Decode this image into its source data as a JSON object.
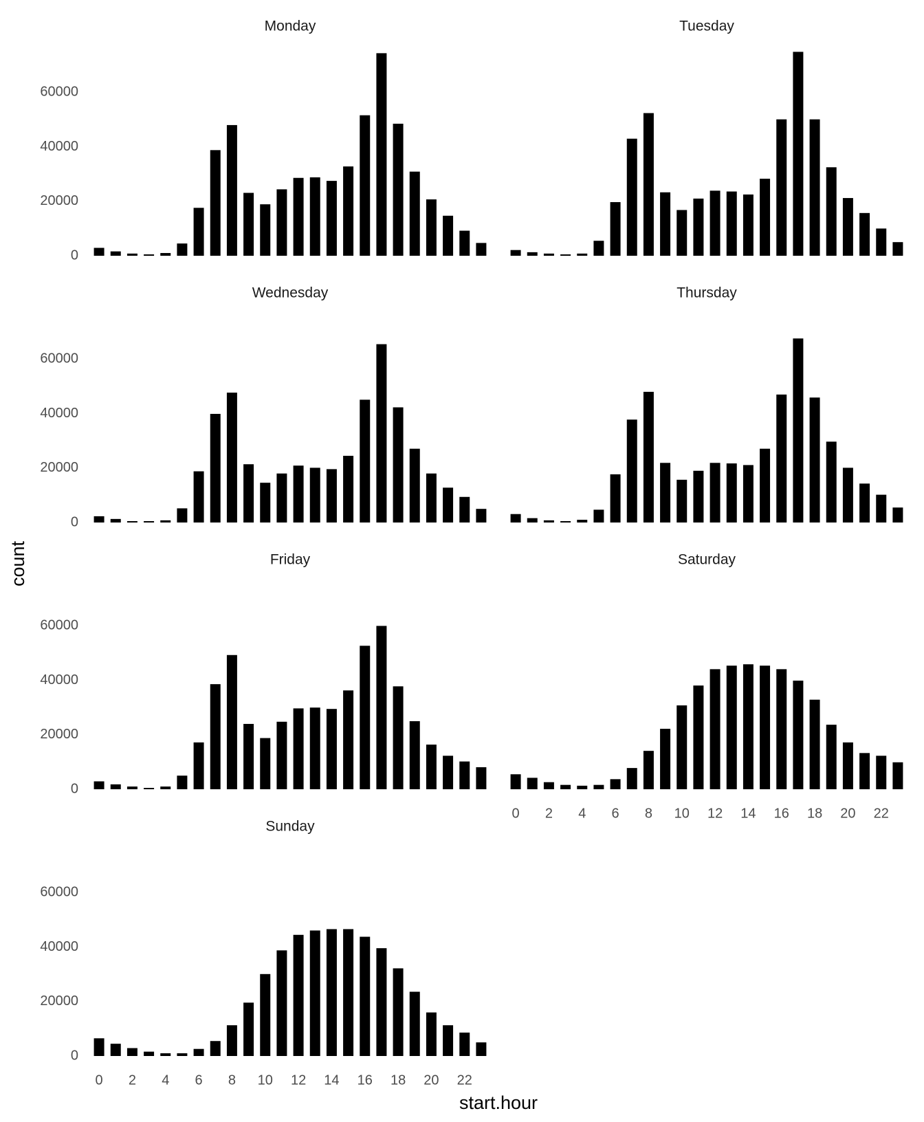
{
  "xlabel": "start.hour",
  "ylabel": "count",
  "chart_data": [
    {
      "type": "bar",
      "title": "Monday",
      "x": [
        0,
        1,
        2,
        3,
        4,
        5,
        6,
        7,
        8,
        9,
        10,
        11,
        12,
        13,
        14,
        15,
        16,
        17,
        18,
        19,
        20,
        21,
        22,
        23
      ],
      "values": [
        2900,
        1600,
        800,
        500,
        1000,
        4500,
        17600,
        38800,
        48000,
        23100,
        18900,
        24400,
        28600,
        28800,
        27500,
        32800,
        51600,
        74400,
        48500,
        30900,
        20700,
        14700,
        9200,
        4700
      ],
      "color": "#000000",
      "xlim": [
        -0.5,
        23.5
      ],
      "ylim": [
        0,
        75000
      ],
      "yticks": [
        0,
        20000,
        40000,
        60000
      ]
    },
    {
      "type": "bar",
      "title": "Tuesday",
      "x": [
        0,
        1,
        2,
        3,
        4,
        5,
        6,
        7,
        8,
        9,
        10,
        11,
        12,
        13,
        14,
        15,
        16,
        17,
        18,
        19,
        20,
        21,
        22,
        23
      ],
      "values": [
        2100,
        1300,
        800,
        500,
        800,
        5500,
        19700,
        43000,
        52400,
        23300,
        16800,
        21000,
        23900,
        23600,
        22500,
        28300,
        50100,
        74900,
        50100,
        32500,
        21200,
        15700,
        10000,
        5000
      ],
      "color": "#000000",
      "xlim": [
        -0.5,
        23.5
      ],
      "ylim": [
        0,
        75000
      ]
    },
    {
      "type": "bar",
      "title": "Wednesday",
      "x": [
        0,
        1,
        2,
        3,
        4,
        5,
        6,
        7,
        8,
        9,
        10,
        11,
        12,
        13,
        14,
        15,
        16,
        17,
        18,
        19,
        20,
        21,
        22,
        23
      ],
      "values": [
        2300,
        1300,
        500,
        500,
        800,
        5200,
        18800,
        39900,
        47700,
        21400,
        14600,
        18000,
        20900,
        20100,
        19600,
        24500,
        45100,
        65500,
        42300,
        27100,
        18000,
        12800,
        9400,
        5000
      ],
      "color": "#000000",
      "xlim": [
        -0.5,
        23.5
      ],
      "ylim": [
        0,
        75000
      ],
      "yticks": [
        0,
        20000,
        40000,
        60000
      ]
    },
    {
      "type": "bar",
      "title": "Thursday",
      "x": [
        0,
        1,
        2,
        3,
        4,
        5,
        6,
        7,
        8,
        9,
        10,
        11,
        12,
        13,
        14,
        15,
        16,
        17,
        18,
        19,
        20,
        21,
        22,
        23
      ],
      "values": [
        3100,
        1600,
        800,
        500,
        1000,
        4700,
        17700,
        37800,
        48000,
        21900,
        15700,
        19000,
        21900,
        21700,
        21100,
        27100,
        47000,
        67600,
        45900,
        29700,
        20100,
        14300,
        10200,
        5500
      ],
      "color": "#000000",
      "xlim": [
        -0.5,
        23.5
      ],
      "ylim": [
        0,
        75000
      ]
    },
    {
      "type": "bar",
      "title": "Friday",
      "x": [
        0,
        1,
        2,
        3,
        4,
        5,
        6,
        7,
        8,
        9,
        10,
        11,
        12,
        13,
        14,
        15,
        16,
        17,
        18,
        19,
        20,
        21,
        22,
        23
      ],
      "values": [
        2900,
        1800,
        1000,
        500,
        1000,
        5000,
        17200,
        38600,
        49300,
        24000,
        18800,
        24800,
        29700,
        30000,
        29500,
        36300,
        52700,
        60000,
        37800,
        25000,
        16400,
        12300,
        10200,
        8100
      ],
      "color": "#000000",
      "xlim": [
        -0.5,
        23.5
      ],
      "ylim": [
        0,
        75000
      ],
      "yticks": [
        0,
        20000,
        40000,
        60000
      ]
    },
    {
      "type": "bar",
      "title": "Saturday",
      "x": [
        0,
        1,
        2,
        3,
        4,
        5,
        6,
        7,
        8,
        9,
        10,
        11,
        12,
        13,
        14,
        15,
        16,
        17,
        18,
        19,
        20,
        21,
        22,
        23
      ],
      "values": [
        5500,
        4200,
        2600,
        1600,
        1300,
        1600,
        3700,
        7800,
        14100,
        22200,
        30800,
        38100,
        44100,
        45400,
        45900,
        45400,
        44100,
        39900,
        32900,
        23700,
        17200,
        13300,
        12300,
        9900
      ],
      "color": "#000000",
      "xlim": [
        -0.5,
        23.5
      ],
      "ylim": [
        0,
        75000
      ],
      "xticks": [
        0,
        2,
        4,
        6,
        8,
        10,
        12,
        14,
        16,
        18,
        20,
        22
      ]
    },
    {
      "type": "bar",
      "title": "Sunday",
      "x": [
        0,
        1,
        2,
        3,
        4,
        5,
        6,
        7,
        8,
        9,
        10,
        11,
        12,
        13,
        14,
        15,
        16,
        17,
        18,
        19,
        20,
        21,
        22,
        23
      ],
      "values": [
        6500,
        4500,
        2900,
        1600,
        1000,
        1000,
        2600,
        5500,
        11300,
        19600,
        30100,
        38800,
        44500,
        46100,
        46600,
        46600,
        43800,
        39600,
        32200,
        23600,
        16000,
        11300,
        8600,
        5000
      ],
      "color": "#000000",
      "xlim": [
        -0.5,
        23.5
      ],
      "ylim": [
        0,
        75000
      ],
      "yticks": [
        0,
        20000,
        40000,
        60000
      ],
      "xticks": [
        0,
        2,
        4,
        6,
        8,
        10,
        12,
        14,
        16,
        18,
        20,
        22
      ]
    }
  ]
}
